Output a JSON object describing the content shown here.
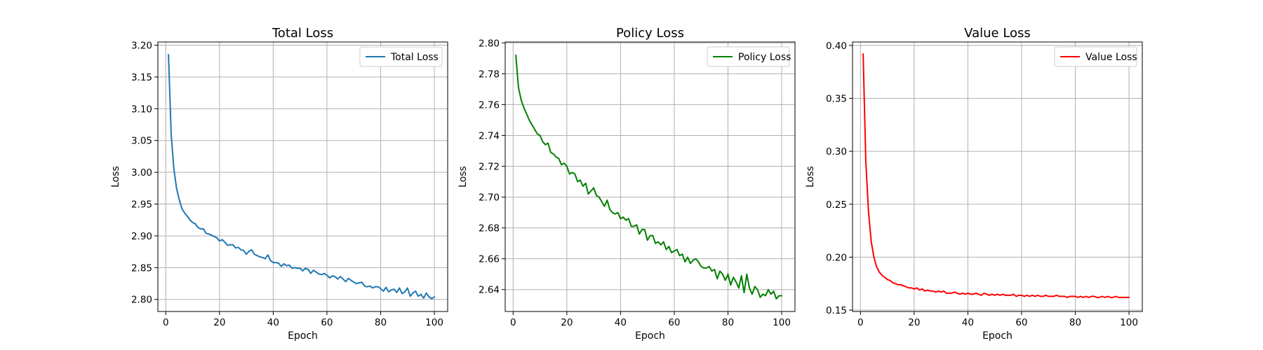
{
  "chart_data": [
    {
      "type": "line",
      "title": "Total Loss",
      "xlabel": "Epoch",
      "ylabel": "Loss",
      "xlim": [
        -2.95,
        104.95
      ],
      "ylim": [
        2.781,
        3.205
      ],
      "xticks": [
        0,
        20,
        40,
        60,
        80,
        100
      ],
      "yticks": [
        2.8,
        2.85,
        2.9,
        2.95,
        3.0,
        3.05,
        3.1,
        3.15,
        3.2
      ],
      "ytick_labels": [
        "2.80",
        "2.85",
        "2.90",
        "2.95",
        "3.00",
        "3.05",
        "3.10",
        "3.15",
        "3.20"
      ],
      "grid": true,
      "legend_position": "top-right",
      "series": [
        {
          "name": "Total Loss",
          "color": "#1f77b4",
          "x": [
            1,
            2,
            3,
            4,
            5,
            6,
            7,
            8,
            9,
            10,
            11,
            12,
            13,
            14,
            15,
            16,
            17,
            18,
            19,
            20,
            21,
            22,
            23,
            24,
            25,
            26,
            27,
            28,
            29,
            30,
            31,
            32,
            33,
            34,
            35,
            36,
            37,
            38,
            39,
            40,
            41,
            42,
            43,
            44,
            45,
            46,
            47,
            48,
            49,
            50,
            51,
            52,
            53,
            54,
            55,
            56,
            57,
            58,
            59,
            60,
            61,
            62,
            63,
            64,
            65,
            66,
            67,
            68,
            69,
            70,
            71,
            72,
            73,
            74,
            75,
            76,
            77,
            78,
            79,
            80,
            81,
            82,
            83,
            84,
            85,
            86,
            87,
            88,
            89,
            90,
            91,
            92,
            93,
            94,
            95,
            96,
            97,
            98,
            99,
            100
          ],
          "values": [
            3.185,
            3.06,
            3.005,
            2.975,
            2.957,
            2.943,
            2.936,
            2.931,
            2.925,
            2.921,
            2.919,
            2.913,
            2.911,
            2.911,
            2.904,
            2.903,
            2.901,
            2.899,
            2.897,
            2.892,
            2.894,
            2.89,
            2.885,
            2.886,
            2.886,
            2.881,
            2.882,
            2.878,
            2.877,
            2.871,
            2.876,
            2.878,
            2.871,
            2.869,
            2.867,
            2.866,
            2.864,
            2.87,
            2.861,
            2.858,
            2.858,
            2.857,
            2.852,
            2.856,
            2.853,
            2.854,
            2.849,
            2.85,
            2.849,
            2.849,
            2.845,
            2.849,
            2.847,
            2.841,
            2.846,
            2.843,
            2.84,
            2.839,
            2.841,
            2.838,
            2.834,
            2.837,
            2.836,
            2.832,
            2.836,
            2.832,
            2.828,
            2.833,
            2.83,
            2.827,
            2.825,
            2.826,
            2.827,
            2.821,
            2.82,
            2.821,
            2.818,
            2.82,
            2.82,
            2.817,
            2.813,
            2.819,
            2.812,
            2.815,
            2.816,
            2.811,
            2.818,
            2.809,
            2.812,
            2.818,
            2.805,
            2.81,
            2.813,
            2.805,
            2.808,
            2.802,
            2.81,
            2.804,
            2.801,
            2.804
          ]
        }
      ]
    },
    {
      "type": "line",
      "title": "Policy Loss",
      "xlabel": "Epoch",
      "ylabel": "Loss",
      "xlim": [
        -2.95,
        104.95
      ],
      "ylim": [
        2.6258,
        2.8006
      ],
      "xticks": [
        0,
        20,
        40,
        60,
        80,
        100
      ],
      "yticks": [
        2.64,
        2.66,
        2.68,
        2.7,
        2.72,
        2.74,
        2.76,
        2.78,
        2.8
      ],
      "ytick_labels": [
        "2.64",
        "2.66",
        "2.68",
        "2.70",
        "2.72",
        "2.74",
        "2.76",
        "2.78",
        "2.80"
      ],
      "grid": true,
      "legend_position": "top-right",
      "series": [
        {
          "name": "Policy Loss",
          "color": "#008000",
          "x": [
            1,
            2,
            3,
            4,
            5,
            6,
            7,
            8,
            9,
            10,
            11,
            12,
            13,
            14,
            15,
            16,
            17,
            18,
            19,
            20,
            21,
            22,
            23,
            24,
            25,
            26,
            27,
            28,
            29,
            30,
            31,
            32,
            33,
            34,
            35,
            36,
            37,
            38,
            39,
            40,
            41,
            42,
            43,
            44,
            45,
            46,
            47,
            48,
            49,
            50,
            51,
            52,
            53,
            54,
            55,
            56,
            57,
            58,
            59,
            60,
            61,
            62,
            63,
            64,
            65,
            66,
            67,
            68,
            69,
            70,
            71,
            72,
            73,
            74,
            75,
            76,
            77,
            78,
            79,
            80,
            81,
            82,
            83,
            84,
            85,
            86,
            87,
            88,
            89,
            90,
            91,
            92,
            93,
            94,
            95,
            96,
            97,
            98,
            99,
            100
          ],
          "values": [
            2.792,
            2.771,
            2.763,
            2.758,
            2.754,
            2.75,
            2.747,
            2.744,
            2.741,
            2.74,
            2.736,
            2.734,
            2.735,
            2.729,
            2.728,
            2.726,
            2.725,
            2.721,
            2.722,
            2.72,
            2.715,
            2.716,
            2.715,
            2.71,
            2.711,
            2.707,
            2.709,
            2.702,
            2.704,
            2.706,
            2.701,
            2.7,
            2.697,
            2.694,
            2.698,
            2.692,
            2.69,
            2.689,
            2.69,
            2.686,
            2.687,
            2.685,
            2.686,
            2.681,
            2.681,
            2.682,
            2.676,
            2.679,
            2.679,
            2.672,
            2.675,
            2.675,
            2.67,
            2.671,
            2.669,
            2.671,
            2.666,
            2.668,
            2.664,
            2.665,
            2.666,
            2.662,
            2.663,
            2.658,
            2.661,
            2.657,
            2.659,
            2.66,
            2.658,
            2.655,
            2.654,
            2.654,
            2.655,
            2.652,
            2.653,
            2.647,
            2.652,
            2.65,
            2.646,
            2.65,
            2.643,
            2.648,
            2.645,
            2.641,
            2.649,
            2.638,
            2.65,
            2.641,
            2.637,
            2.642,
            2.64,
            2.635,
            2.637,
            2.636,
            2.64,
            2.637,
            2.639,
            2.634,
            2.636,
            2.636
          ]
        }
      ]
    },
    {
      "type": "line",
      "title": "Value Loss",
      "xlabel": "Epoch",
      "ylabel": "Loss",
      "xlim": [
        -2.95,
        104.95
      ],
      "ylim": [
        0.1487,
        0.4032
      ],
      "xticks": [
        0,
        20,
        40,
        60,
        80,
        100
      ],
      "yticks": [
        0.15,
        0.2,
        0.25,
        0.3,
        0.35,
        0.4
      ],
      "ytick_labels": [
        "0.15",
        "0.20",
        "0.25",
        "0.30",
        "0.35",
        "0.40"
      ],
      "grid": true,
      "legend_position": "top-right",
      "series": [
        {
          "name": "Value Loss",
          "color": "#ff0000",
          "x": [
            1,
            2,
            3,
            4,
            5,
            6,
            7,
            8,
            9,
            10,
            11,
            12,
            13,
            14,
            15,
            16,
            17,
            18,
            19,
            20,
            21,
            22,
            23,
            24,
            25,
            26,
            27,
            28,
            29,
            30,
            31,
            32,
            33,
            34,
            35,
            36,
            37,
            38,
            39,
            40,
            41,
            42,
            43,
            44,
            45,
            46,
            47,
            48,
            49,
            50,
            51,
            52,
            53,
            54,
            55,
            56,
            57,
            58,
            59,
            60,
            61,
            62,
            63,
            64,
            65,
            66,
            67,
            68,
            69,
            70,
            71,
            72,
            73,
            74,
            75,
            76,
            77,
            78,
            79,
            80,
            81,
            82,
            83,
            84,
            85,
            86,
            87,
            88,
            89,
            90,
            91,
            92,
            93,
            94,
            95,
            96,
            97,
            98,
            99,
            100
          ],
          "values": [
            0.392,
            0.29,
            0.243,
            0.215,
            0.2,
            0.191,
            0.186,
            0.183,
            0.181,
            0.179,
            0.178,
            0.176,
            0.175,
            0.174,
            0.174,
            0.173,
            0.172,
            0.171,
            0.171,
            0.17,
            0.171,
            0.169,
            0.17,
            0.168,
            0.169,
            0.168,
            0.168,
            0.167,
            0.168,
            0.167,
            0.168,
            0.166,
            0.166,
            0.166,
            0.167,
            0.166,
            0.165,
            0.166,
            0.165,
            0.166,
            0.165,
            0.165,
            0.166,
            0.165,
            0.164,
            0.166,
            0.165,
            0.164,
            0.165,
            0.164,
            0.165,
            0.164,
            0.165,
            0.164,
            0.164,
            0.164,
            0.165,
            0.163,
            0.164,
            0.164,
            0.163,
            0.164,
            0.163,
            0.164,
            0.163,
            0.164,
            0.163,
            0.163,
            0.164,
            0.163,
            0.163,
            0.163,
            0.164,
            0.163,
            0.163,
            0.163,
            0.162,
            0.163,
            0.163,
            0.163,
            0.162,
            0.163,
            0.162,
            0.163,
            0.162,
            0.163,
            0.163,
            0.162,
            0.162,
            0.163,
            0.162,
            0.163,
            0.162,
            0.162,
            0.163,
            0.162,
            0.162,
            0.162,
            0.162,
            0.162
          ]
        }
      ]
    }
  ]
}
